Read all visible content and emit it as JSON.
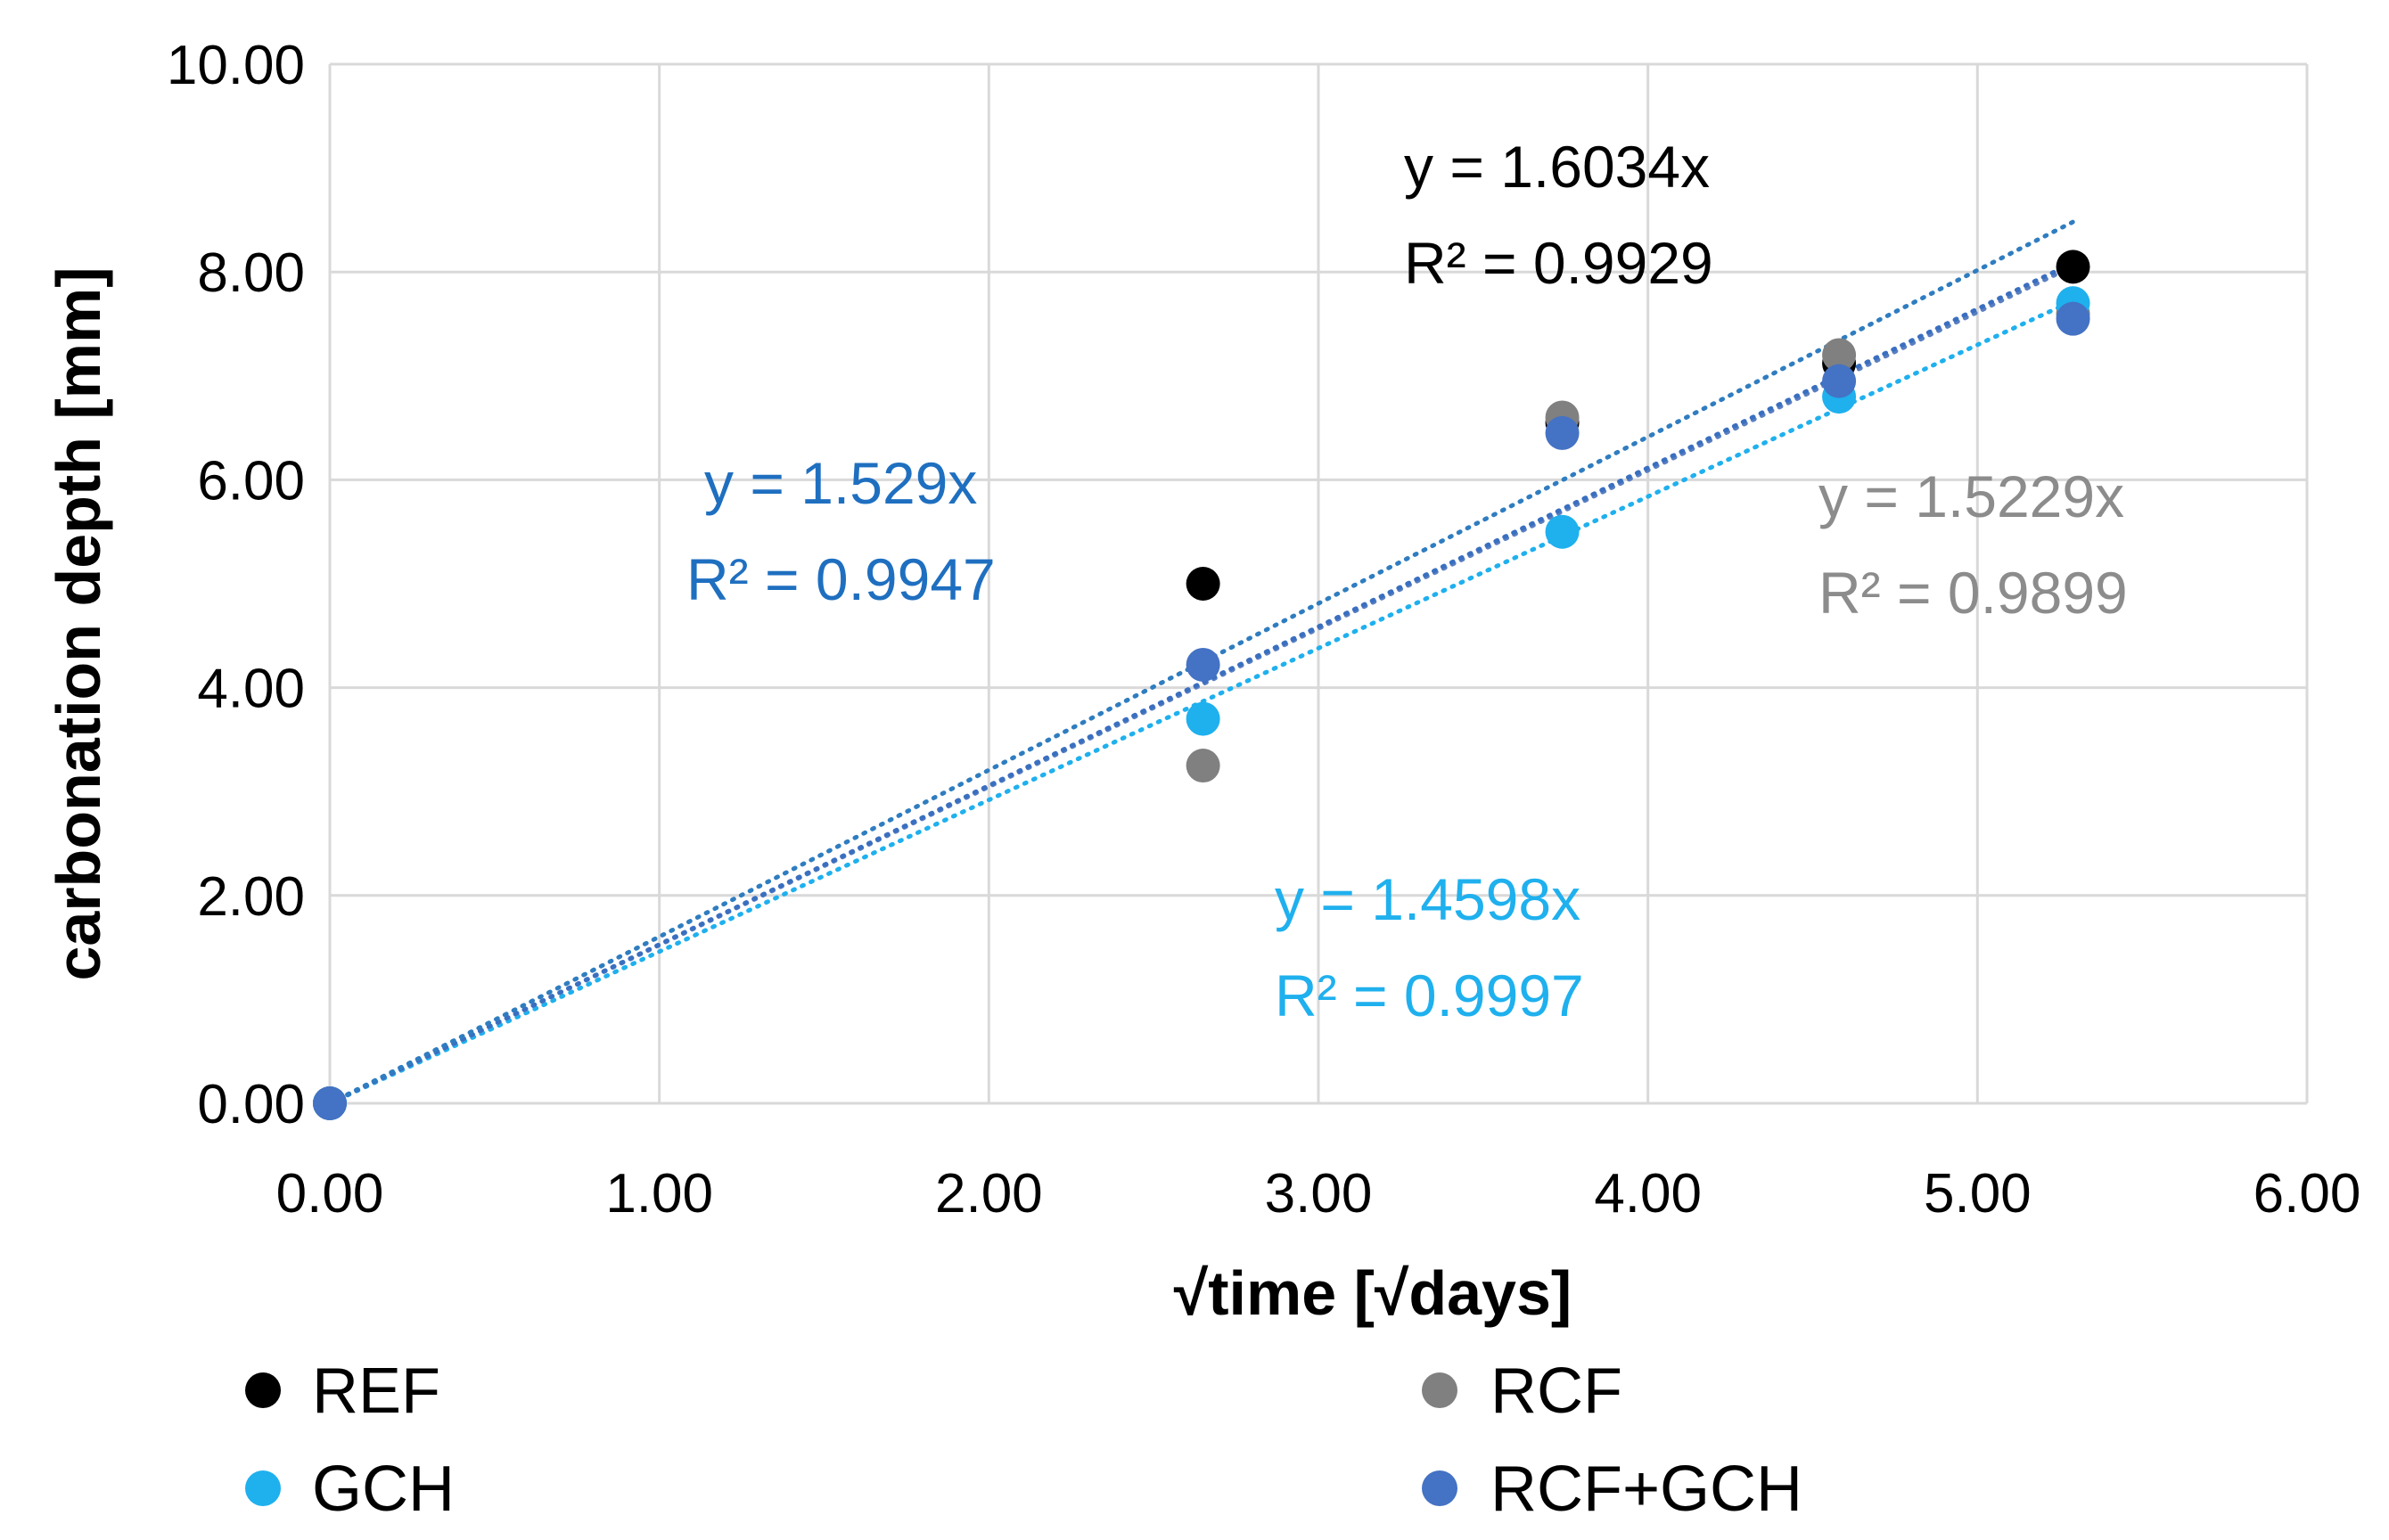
{
  "chart_data": {
    "type": "scatter",
    "title": "",
    "xlabel": "√time [√days]",
    "ylabel": "carbonation depth  [mm]",
    "xlim": [
      0,
      6
    ],
    "ylim": [
      0,
      10
    ],
    "x_ticks": [
      "0.00",
      "1.00",
      "2.00",
      "3.00",
      "4.00",
      "5.00",
      "6.00"
    ],
    "y_ticks": [
      "0.00",
      "2.00",
      "4.00",
      "6.00",
      "8.00",
      "10.00"
    ],
    "grid": true,
    "legend_position": "bottom",
    "x": [
      0,
      2.65,
      3.74,
      4.58,
      5.29
    ],
    "series": [
      {
        "name": "REF",
        "color": "#000000",
        "values": [
          0,
          5.0,
          6.55,
          7.12,
          8.05
        ],
        "trend_slope": 1.6034,
        "equation": "y = 1.6034x",
        "r2": "R² = 0.9929",
        "annotation_color": "#000000"
      },
      {
        "name": "RCF",
        "color": "#808080",
        "values": [
          0,
          3.25,
          6.6,
          7.2,
          7.6
        ],
        "trend_slope": 1.5229,
        "equation": "y = 1.5229x",
        "r2": "R² = 0.9899",
        "annotation_color": "#8c8c8c"
      },
      {
        "name": "GCH",
        "color": "#1fb0ee",
        "values": [
          0,
          3.7,
          5.5,
          6.8,
          7.7
        ],
        "trend_slope": 1.4598,
        "equation": "y = 1.4598x",
        "r2": "R² = 0.9997",
        "annotation_color": "#1fb0ee"
      },
      {
        "name": "RCF+GCH",
        "color": "#4472c4",
        "values": [
          0,
          4.22,
          6.45,
          6.95,
          7.55
        ],
        "trend_slope": 1.529,
        "equation": "y = 1.529x",
        "r2": "R² = 0.9947",
        "annotation_color": "#1f6fc0"
      }
    ]
  }
}
